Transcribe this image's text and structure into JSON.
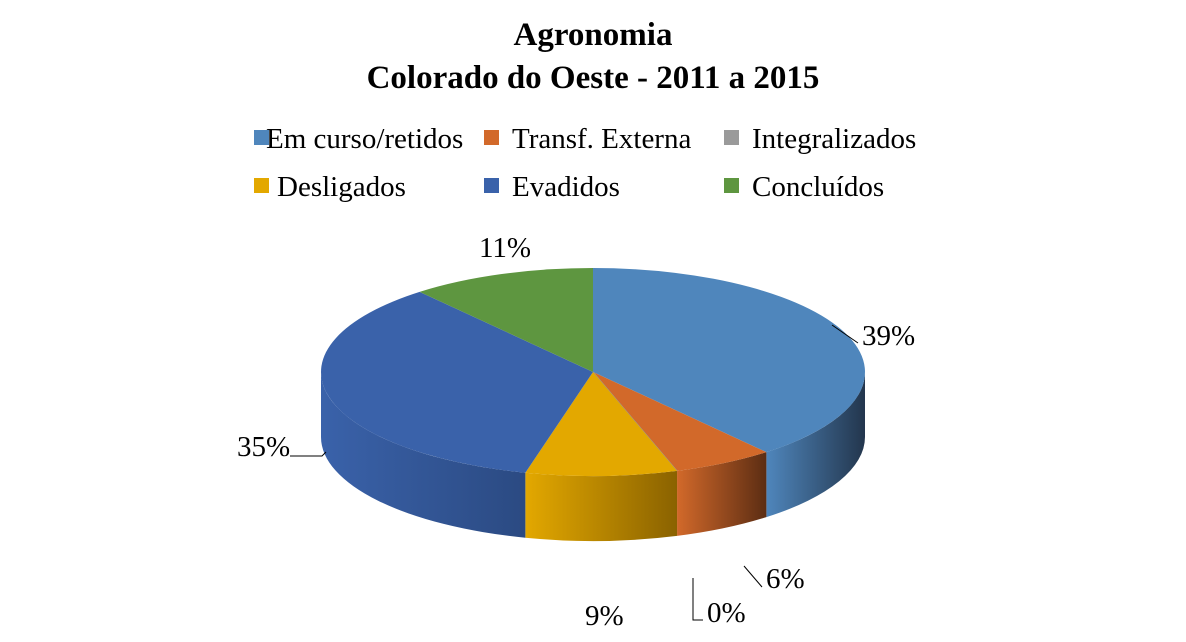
{
  "chart_data": {
    "type": "pie",
    "title": "Agronomia",
    "subtitle": "Colorado do Oeste - 2011 a 2015",
    "legend_position": "top",
    "series": [
      {
        "name": "Em curso/retidos",
        "value": 39,
        "label": "39%",
        "color": "#4F86BC",
        "side_color": "#23364D"
      },
      {
        "name": "Transf. Externa",
        "value": 6,
        "label": "6%",
        "color": "#D2692A",
        "side_color": "#5C2D13"
      },
      {
        "name": "Integralizados",
        "value": 0,
        "label": "0%",
        "color": "#9A9A9A",
        "side_color": "#4A4A4A"
      },
      {
        "name": "Desligados",
        "value": 9,
        "label": "9%",
        "color": "#E3A800",
        "side_color": "#8A6200"
      },
      {
        "name": "Evadidos",
        "value": 35,
        "label": "35%",
        "color": "#3A62AA",
        "side_color": "#2B4A82"
      },
      {
        "name": "Concluídos",
        "value": 11,
        "label": "11%",
        "color": "#5E9640",
        "side_color": "#3C6128"
      }
    ]
  }
}
